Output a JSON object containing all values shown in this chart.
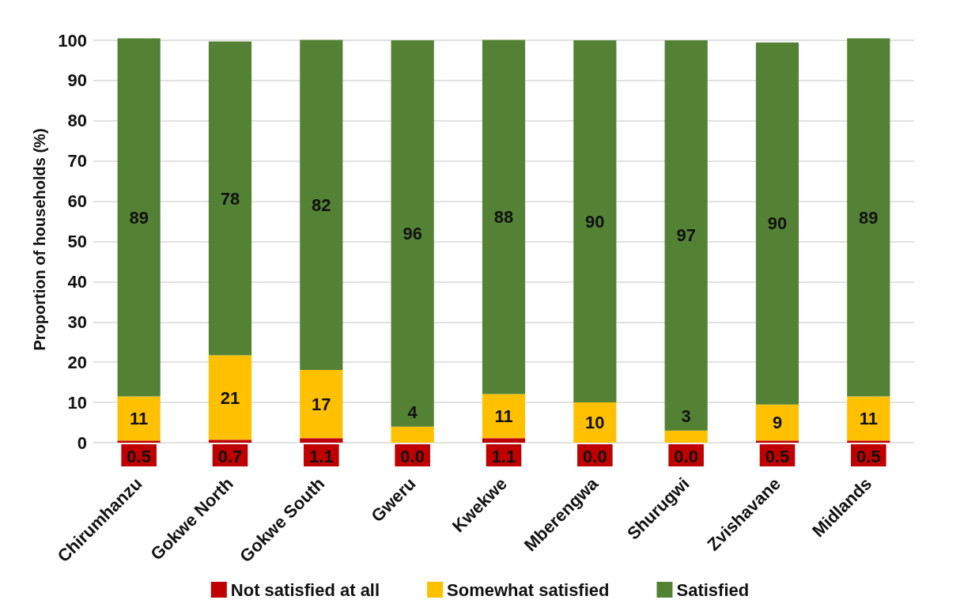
{
  "chart_data": {
    "type": "bar",
    "stacked": true,
    "ylabel": "Proportion of households (%)",
    "categories": [
      "Chirumhanzu",
      "Gokwe North",
      "Gokwe South",
      "Gweru",
      "Kwekwe",
      "Mberengwa",
      "Shurugwi",
      "Zvishavane",
      "Midlands"
    ],
    "series": [
      {
        "name": "Not satisfied at all",
        "color": "#c00000",
        "values": [
          0.5,
          0.7,
          1.1,
          0.0,
          1.1,
          0.0,
          0.0,
          0.5,
          0.5
        ],
        "value_labels": [
          "0.5",
          "0.7",
          "1.1",
          "0.0",
          "1.1",
          "0.0",
          "0.0",
          "0.5",
          "0.5"
        ]
      },
      {
        "name": "Somewhat satisfied",
        "color": "#ffc000",
        "values": [
          11,
          21,
          17,
          4,
          11,
          10,
          3,
          9,
          11
        ],
        "value_labels": [
          "11",
          "21",
          "17",
          "4",
          "11",
          "10",
          "3",
          "9",
          "11"
        ]
      },
      {
        "name": "Satisfied",
        "color": "#548235",
        "values": [
          89,
          78,
          82,
          96,
          88,
          90,
          97,
          90,
          89
        ],
        "value_labels": [
          "89",
          "78",
          "82",
          "96",
          "88",
          "90",
          "97",
          "90",
          "89"
        ]
      }
    ],
    "ylim": [
      0,
      101
    ],
    "yticks": [
      0,
      10,
      20,
      30,
      40,
      50,
      60,
      70,
      80,
      90,
      100
    ],
    "grid": "y",
    "legend": "bottom"
  }
}
